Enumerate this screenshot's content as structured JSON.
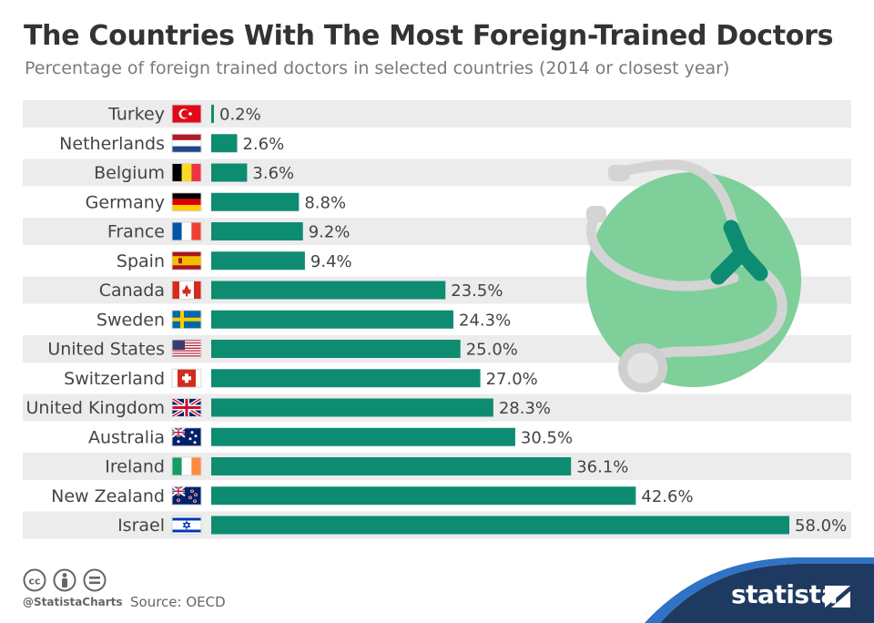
{
  "title": "The Countries With The Most Foreign-Trained Doctors",
  "subtitle": "Percentage of foreign trained doctors in selected countries (2014 or closest year)",
  "colors": {
    "bar": "#0e8c72",
    "row_alt": "#ececec",
    "title": "#333333",
    "brand_blue": "#1f3a60",
    "illustration_circle": "#7fcf9a",
    "stethoscope_gray": "#d4d4d4",
    "stethoscope_green": "#0e8c72"
  },
  "chart_data": {
    "type": "bar",
    "orientation": "horizontal",
    "title": "The Countries With The Most Foreign-Trained Doctors",
    "subtitle": "Percentage of foreign trained doctors in selected countries (2014 or closest year)",
    "categories": [
      "Turkey",
      "Netherlands",
      "Belgium",
      "Germany",
      "France",
      "Spain",
      "Canada",
      "Sweden",
      "United States",
      "Switzerland",
      "United Kingdom",
      "Australia",
      "Ireland",
      "New Zealand",
      "Israel"
    ],
    "values": [
      0.2,
      2.6,
      3.6,
      8.8,
      9.2,
      9.4,
      23.5,
      24.3,
      25.0,
      27.0,
      28.3,
      30.5,
      36.1,
      42.6,
      58.0
    ],
    "labels": [
      "0.2%",
      "2.6%",
      "3.6%",
      "8.8%",
      "9.2%",
      "9.4%",
      "23.5%",
      "24.3%",
      "25.0%",
      "27.0%",
      "28.3%",
      "30.5%",
      "36.1%",
      "42.6%",
      "58.0%"
    ],
    "flag_icons": [
      "flag-turkey-icon",
      "flag-netherlands-icon",
      "flag-belgium-icon",
      "flag-germany-icon",
      "flag-france-icon",
      "flag-spain-icon",
      "flag-canada-icon",
      "flag-sweden-icon",
      "flag-united-states-icon",
      "flag-switzerland-icon",
      "flag-united-kingdom-icon",
      "flag-australia-icon",
      "flag-ireland-icon",
      "flag-new-zealand-icon",
      "flag-israel-icon"
    ],
    "xlabel": "",
    "ylabel": "",
    "xlim": [
      0,
      58.0
    ],
    "grid": false,
    "legend": "none",
    "row_banding": true
  },
  "illustration": {
    "icon": "stethoscope-icon"
  },
  "footer": {
    "license_icons": [
      "cc-icon",
      "attribution-icon",
      "no-derivatives-icon"
    ],
    "handle": "@StatistaCharts",
    "source": "Source: OECD",
    "brand": "statista",
    "brand_icon": "statista-logo-icon"
  }
}
